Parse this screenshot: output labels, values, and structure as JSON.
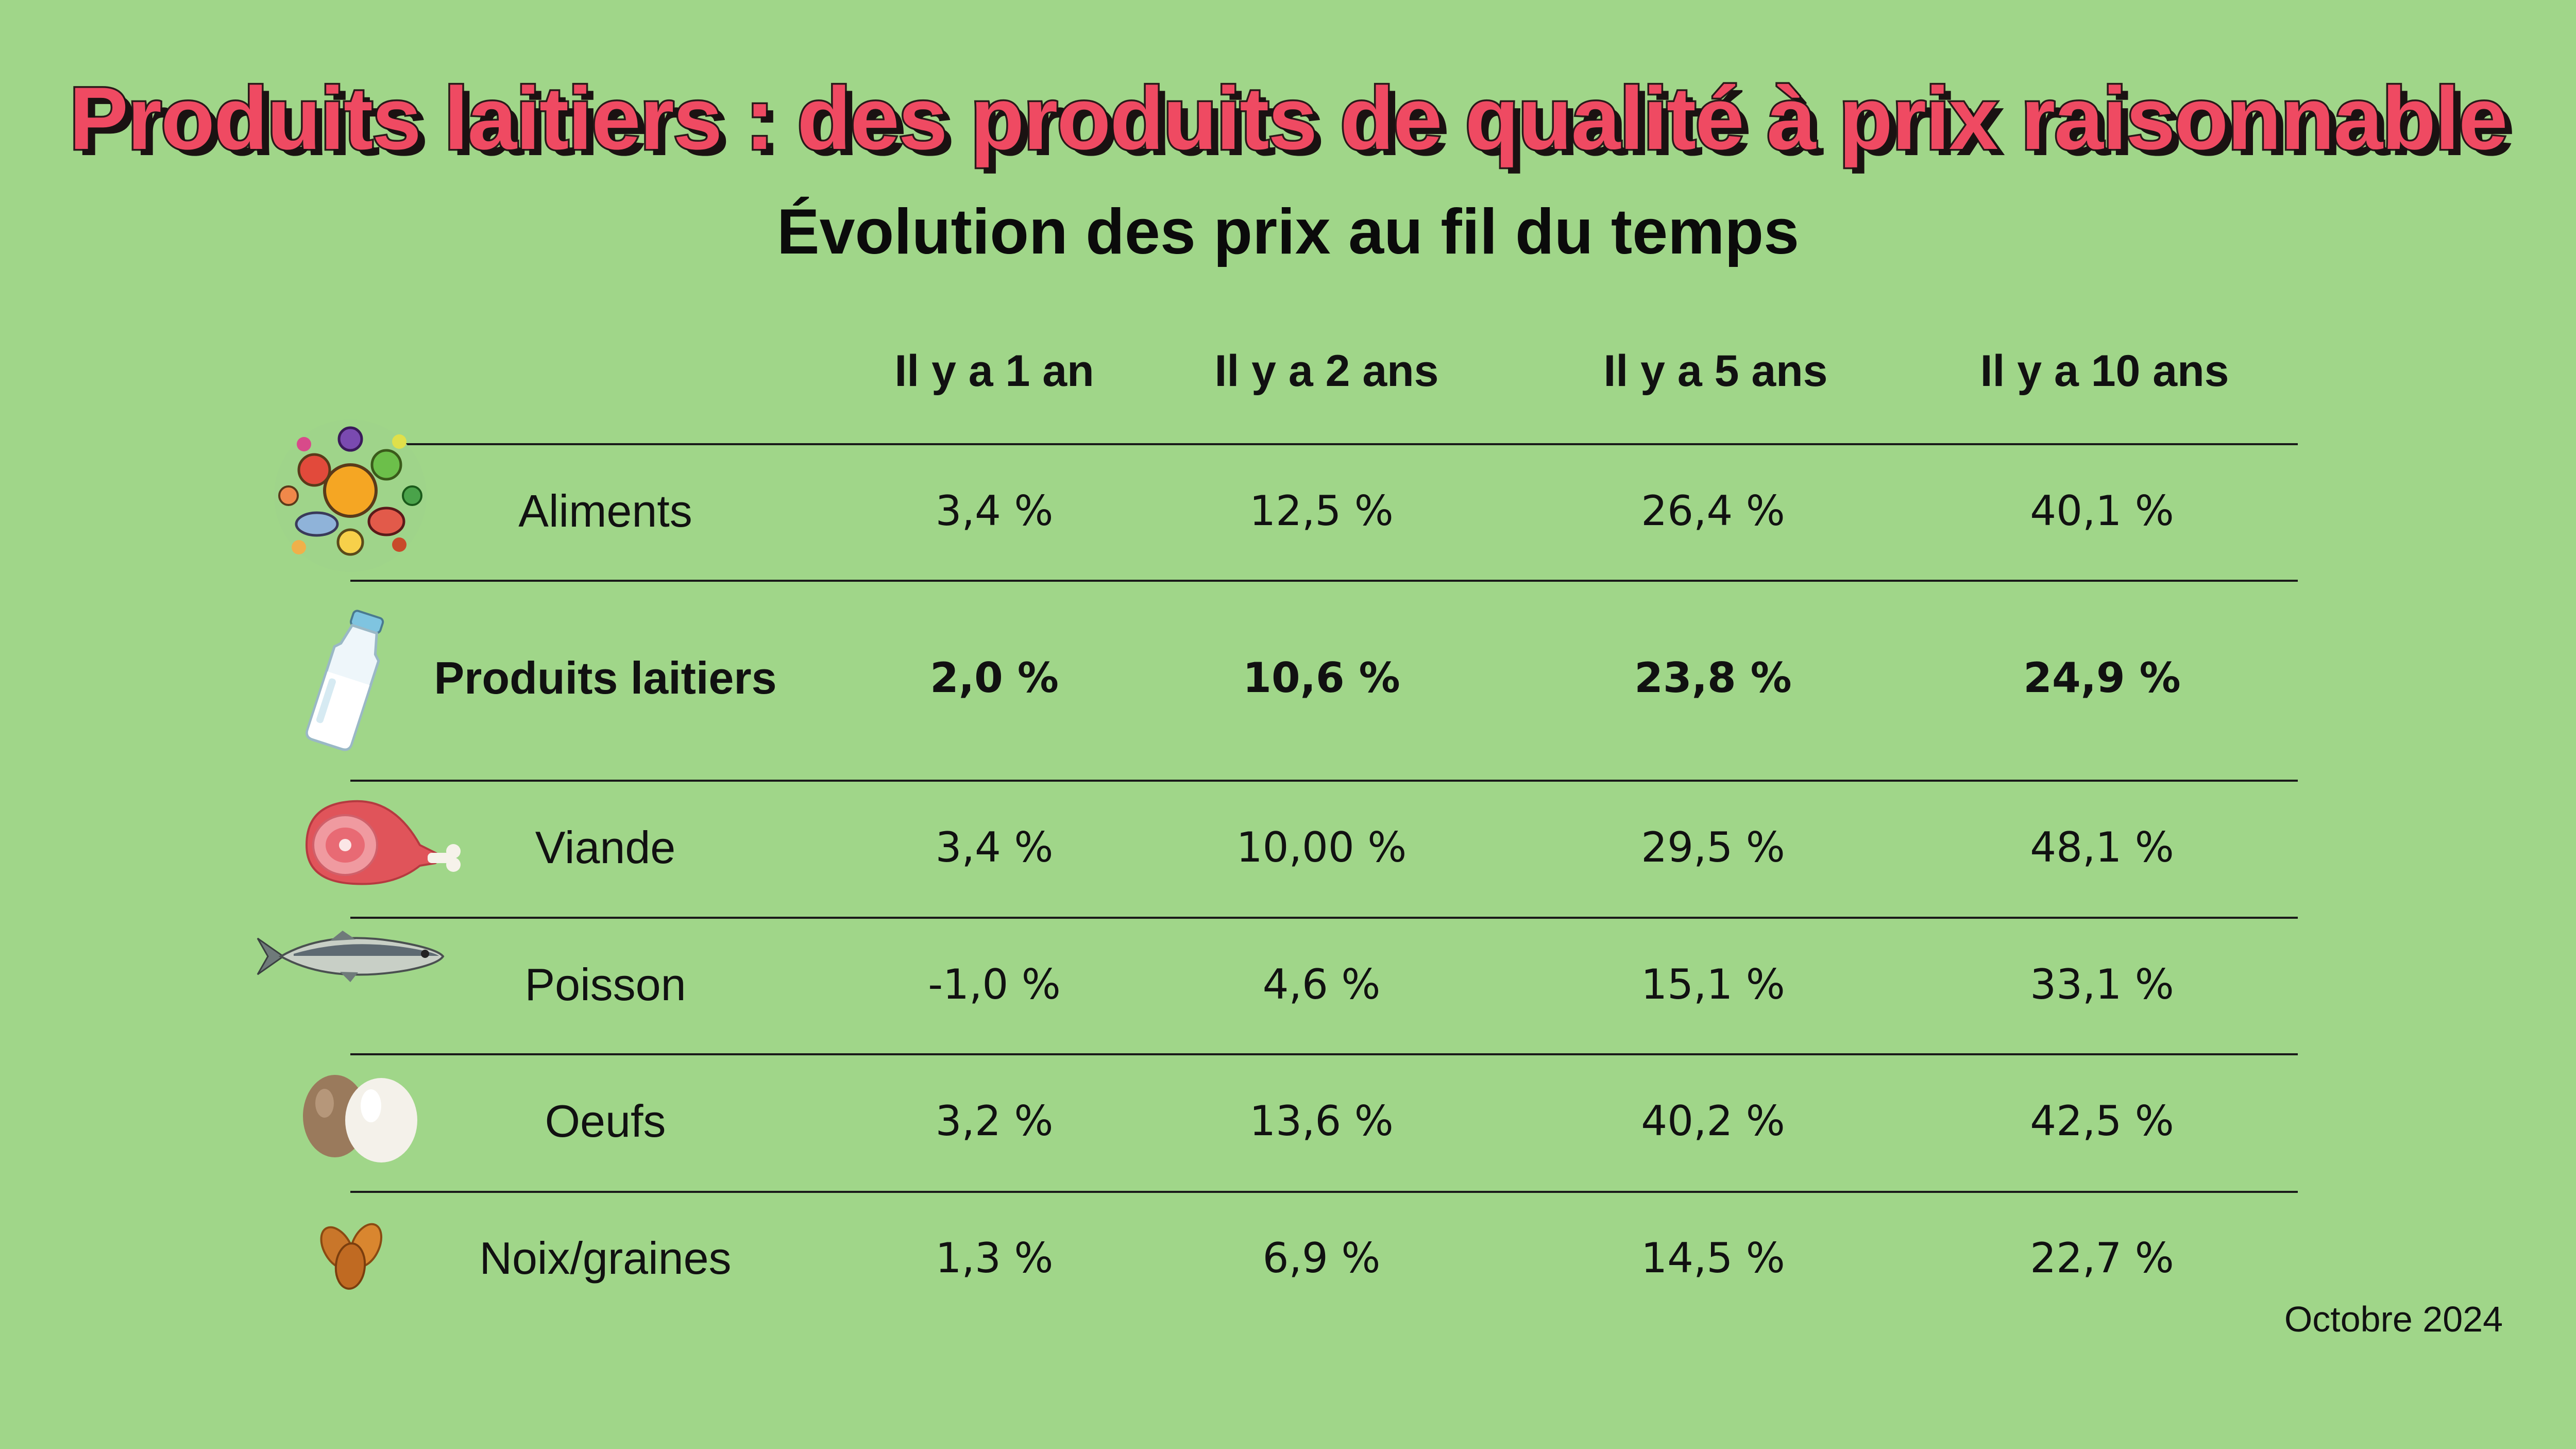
{
  "chart_data": {
    "type": "table",
    "title": "Produits laitiers : des produits de qualité à prix raisonnable",
    "subtitle": "Évolution des prix au fil du temps",
    "columns": [
      "Il y a 1 an",
      "Il y a 2 ans",
      "Il y a 5 ans",
      "Il y a 10 ans"
    ],
    "rows": [
      {
        "label": "Aliments",
        "icon": "food-collage-icon",
        "values": [
          "3,4 %",
          "12,5 %",
          "26,4 %",
          "40,1 %"
        ],
        "highlight": false
      },
      {
        "label": "Produits laitiers",
        "icon": "milk-bottle-icon",
        "values": [
          "2,0 %",
          "10,6 %",
          "23,8 %",
          "24,9 %"
        ],
        "highlight": true
      },
      {
        "label": "Viande",
        "icon": "ham-icon",
        "values": [
          "3,4 %",
          "10,00 %",
          "29,5 %",
          "48,1 %"
        ],
        "highlight": false
      },
      {
        "label": "Poisson",
        "icon": "fish-icon",
        "values": [
          "-1,0 %",
          "4,6 %",
          "15,1 %",
          "33,1 %"
        ],
        "highlight": false
      },
      {
        "label": "Oeufs",
        "icon": "eggs-icon",
        "values": [
          "3,2  %",
          "13,6 %",
          "40,2 %",
          "42,5 %"
        ],
        "highlight": false
      },
      {
        "label": "Noix/graines",
        "icon": "almonds-icon",
        "values": [
          "1,3 %",
          "6,9 %",
          "14,5 %",
          "22,7 %"
        ],
        "highlight": false
      }
    ],
    "footer": "Octobre 2024"
  },
  "colors": {
    "background": "#a0d689",
    "title_fill": "#ef4a62",
    "title_outline": "#2a1a1a",
    "text": "#111111",
    "rules": "#1a1a1a"
  }
}
